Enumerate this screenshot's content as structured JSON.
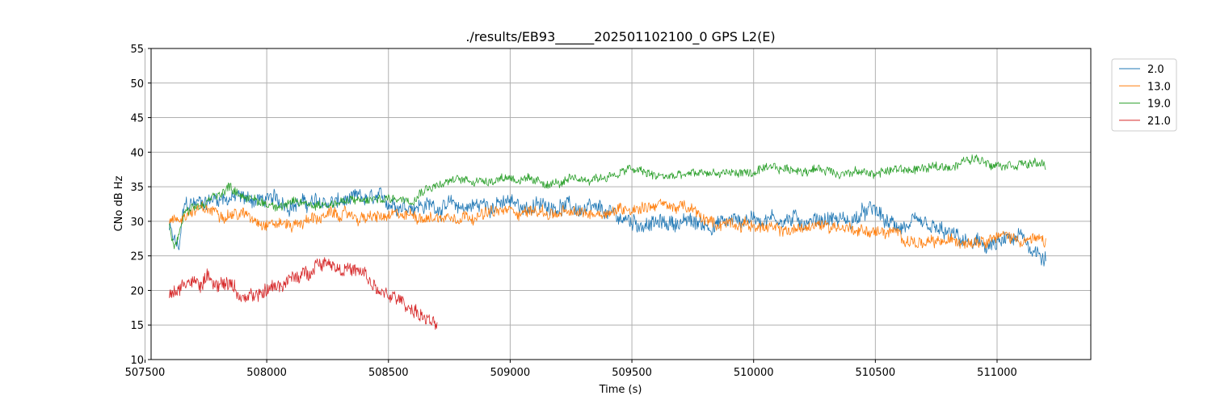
{
  "chart_data": {
    "type": "line",
    "title": "./results/EB93______202501102100_0 GPS L2(E)",
    "xlabel": "Time (s)",
    "ylabel": "CNo dB Hz",
    "xlim": [
      507525,
      511385
    ],
    "ylim": [
      10,
      55
    ],
    "xticks": [
      507500,
      508000,
      508500,
      509000,
      509500,
      510000,
      510500,
      511000
    ],
    "yticks": [
      10,
      15,
      20,
      25,
      30,
      35,
      40,
      45,
      50,
      55
    ],
    "grid": true,
    "legend_position": "upper-right-outside",
    "series": [
      {
        "name": "2.0",
        "color": "#1f77b4",
        "noise": 1.2,
        "points": [
          [
            507600,
            29
          ],
          [
            507620,
            27
          ],
          [
            507640,
            26
          ],
          [
            507660,
            32
          ],
          [
            507700,
            32.5
          ],
          [
            507800,
            33.5
          ],
          [
            507850,
            33.5
          ],
          [
            508000,
            33
          ],
          [
            508200,
            32.5
          ],
          [
            508400,
            33
          ],
          [
            508600,
            32.5
          ],
          [
            508800,
            32
          ],
          [
            508900,
            32.5
          ],
          [
            509000,
            32.5
          ],
          [
            509100,
            32
          ],
          [
            509200,
            32.5
          ],
          [
            509300,
            31.5
          ],
          [
            509400,
            31
          ],
          [
            509500,
            30
          ],
          [
            509600,
            29.5
          ],
          [
            509700,
            30
          ],
          [
            509800,
            29.5
          ],
          [
            509900,
            30
          ],
          [
            510000,
            30.5
          ],
          [
            510100,
            30.5
          ],
          [
            510200,
            30
          ],
          [
            510300,
            30.5
          ],
          [
            510400,
            30
          ],
          [
            510450,
            31
          ],
          [
            510500,
            31.5
          ],
          [
            510550,
            29.5
          ],
          [
            510700,
            29
          ],
          [
            510800,
            28
          ],
          [
            510900,
            26.5
          ],
          [
            511000,
            26.5
          ],
          [
            511100,
            27.5
          ],
          [
            511150,
            26
          ],
          [
            511200,
            25
          ]
        ]
      },
      {
        "name": "13.0",
        "color": "#ff7f0e",
        "noise": 0.9,
        "points": [
          [
            507600,
            30
          ],
          [
            507640,
            30
          ],
          [
            507660,
            31
          ],
          [
            507700,
            31.5
          ],
          [
            507800,
            31.5
          ],
          [
            507900,
            31
          ],
          [
            508000,
            30
          ],
          [
            508100,
            29.5
          ],
          [
            508200,
            30.5
          ],
          [
            508300,
            31
          ],
          [
            508400,
            30.5
          ],
          [
            508500,
            30.5
          ],
          [
            508600,
            31
          ],
          [
            508700,
            30.5
          ],
          [
            508800,
            31
          ],
          [
            508900,
            31
          ],
          [
            509000,
            31.5
          ],
          [
            509100,
            31.5
          ],
          [
            509200,
            31
          ],
          [
            509300,
            31
          ],
          [
            509400,
            31.5
          ],
          [
            509500,
            32
          ],
          [
            509600,
            32.5
          ],
          [
            509700,
            32
          ],
          [
            509750,
            31.5
          ],
          [
            509800,
            30
          ],
          [
            509850,
            29.5
          ],
          [
            509900,
            30
          ],
          [
            510000,
            29.5
          ],
          [
            510100,
            28.5
          ],
          [
            510200,
            29
          ],
          [
            510300,
            29.5
          ],
          [
            510400,
            29
          ],
          [
            510500,
            28.5
          ],
          [
            510600,
            28
          ],
          [
            510700,
            26.5
          ],
          [
            510800,
            27
          ],
          [
            510900,
            27.5
          ],
          [
            511000,
            28
          ],
          [
            511100,
            27.5
          ],
          [
            511200,
            27
          ]
        ]
      },
      {
        "name": "19.0",
        "color": "#2ca02c",
        "noise": 0.7,
        "points": [
          [
            507600,
            29
          ],
          [
            507620,
            26
          ],
          [
            507640,
            28
          ],
          [
            507660,
            31
          ],
          [
            507700,
            31.5
          ],
          [
            507750,
            32.5
          ],
          [
            507800,
            34
          ],
          [
            507850,
            35
          ],
          [
            507900,
            34
          ],
          [
            507950,
            33
          ],
          [
            508000,
            32.5
          ],
          [
            508200,
            32.5
          ],
          [
            508400,
            33
          ],
          [
            508600,
            33.5
          ],
          [
            508650,
            35
          ],
          [
            508800,
            36
          ],
          [
            508900,
            36
          ],
          [
            509000,
            36.5
          ],
          [
            509100,
            35.5
          ],
          [
            509200,
            35.5
          ],
          [
            509300,
            36
          ],
          [
            509400,
            36.5
          ],
          [
            509500,
            37.5
          ],
          [
            509600,
            36.5
          ],
          [
            509700,
            36.5
          ],
          [
            509800,
            37
          ],
          [
            509900,
            37
          ],
          [
            510000,
            37
          ],
          [
            510100,
            37.5
          ],
          [
            510200,
            37.5
          ],
          [
            510300,
            37.5
          ],
          [
            510400,
            37
          ],
          [
            510500,
            37
          ],
          [
            510600,
            37.5
          ],
          [
            510700,
            37.5
          ],
          [
            510800,
            38
          ],
          [
            510900,
            39
          ],
          [
            511000,
            38.5
          ],
          [
            511100,
            38.5
          ],
          [
            511200,
            38
          ]
        ]
      },
      {
        "name": "21.0",
        "color": "#d62728",
        "noise": 1.1,
        "points": [
          [
            507600,
            19.5
          ],
          [
            507640,
            19.5
          ],
          [
            507660,
            21.5
          ],
          [
            507700,
            21
          ],
          [
            507750,
            21.5
          ],
          [
            507800,
            21.5
          ],
          [
            507850,
            21
          ],
          [
            507900,
            19
          ],
          [
            507950,
            18.5
          ],
          [
            508000,
            20
          ],
          [
            508050,
            21
          ],
          [
            508100,
            21.5
          ],
          [
            508150,
            22
          ],
          [
            508200,
            24
          ],
          [
            508250,
            24.5
          ],
          [
            508300,
            23.5
          ],
          [
            508350,
            23
          ],
          [
            508400,
            22
          ],
          [
            508450,
            20
          ],
          [
            508500,
            19
          ],
          [
            508550,
            18.5
          ],
          [
            508600,
            17.5
          ],
          [
            508650,
            16
          ],
          [
            508700,
            14.5
          ]
        ]
      }
    ]
  }
}
